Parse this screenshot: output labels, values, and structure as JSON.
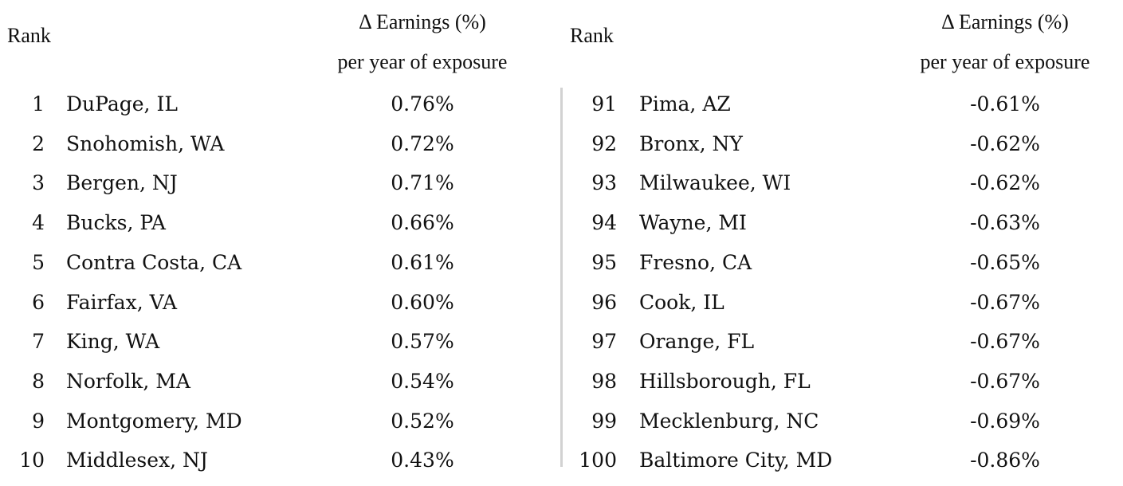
{
  "left_table": {
    "rank_header": "Rank",
    "value_header_line1": "Δ Earnings (%)",
    "value_header_line2": "per year of exposure",
    "rows": [
      {
        "rank": "1",
        "county": "DuPage, IL",
        "value": "0.76%"
      },
      {
        "rank": "2",
        "county": "Snohomish, WA",
        "value": "0.72%"
      },
      {
        "rank": "3",
        "county": "Bergen, NJ",
        "value": "0.71%"
      },
      {
        "rank": "4",
        "county": "Bucks, PA",
        "value": "0.66%"
      },
      {
        "rank": "5",
        "county": "Contra Costa, CA",
        "value": "0.61%"
      },
      {
        "rank": "6",
        "county": "Fairfax, VA",
        "value": "0.60%"
      },
      {
        "rank": "7",
        "county": "King, WA",
        "value": "0.57%"
      },
      {
        "rank": "8",
        "county": "Norfolk, MA",
        "value": "0.54%"
      },
      {
        "rank": "9",
        "county": "Montgomery, MD",
        "value": "0.52%"
      },
      {
        "rank": "10",
        "county": "Middlesex, NJ",
        "value": "0.43%"
      }
    ]
  },
  "right_table": {
    "rank_header": "Rank",
    "value_header_line1": "Δ Earnings (%)",
    "value_header_line2": "per year of exposure",
    "rows": [
      {
        "rank": "91",
        "county": "Pima, AZ",
        "value": "-0.61%"
      },
      {
        "rank": "92",
        "county": "Bronx, NY",
        "value": "-0.62%"
      },
      {
        "rank": "93",
        "county": "Milwaukee, WI",
        "value": "-0.62%"
      },
      {
        "rank": "94",
        "county": "Wayne, MI",
        "value": "-0.63%"
      },
      {
        "rank": "95",
        "county": "Fresno, CA",
        "value": "-0.65%"
      },
      {
        "rank": "96",
        "county": "Cook, IL",
        "value": "-0.67%"
      },
      {
        "rank": "97",
        "county": "Orange, FL",
        "value": "-0.67%"
      },
      {
        "rank": "98",
        "county": "Hillsborough, FL",
        "value": "-0.67%"
      },
      {
        "rank": "99",
        "county": "Mecklenburg, NC",
        "value": "-0.69%"
      },
      {
        "rank": "100",
        "county": "Baltimore City, MD",
        "value": "-0.86%"
      }
    ]
  },
  "colors": {
    "text": "#111111",
    "divider": "#d2d2d2",
    "background": "#ffffff"
  }
}
